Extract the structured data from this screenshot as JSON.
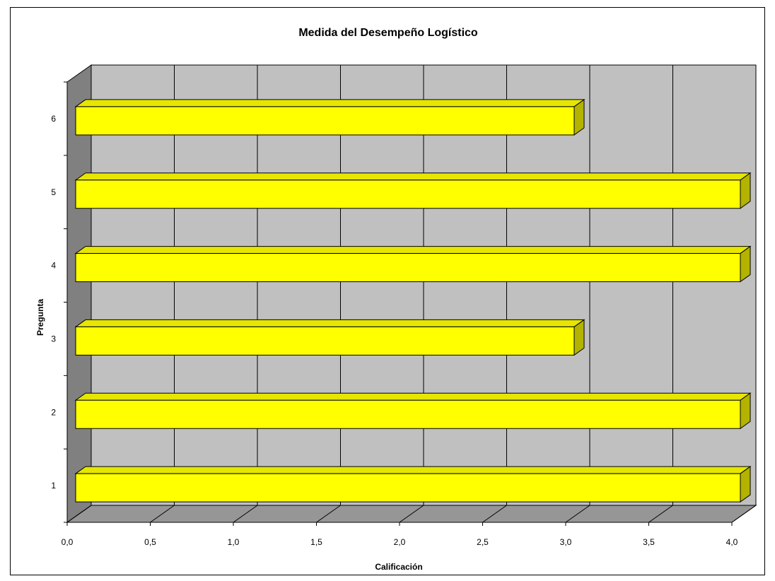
{
  "chart_data": {
    "type": "bar",
    "orientation": "horizontal",
    "style": "3d",
    "title": "Medida del Desempeño Logístico",
    "xlabel": "Calificación",
    "ylabel": "Pregunta",
    "categories": [
      "1",
      "2",
      "3",
      "4",
      "5",
      "6"
    ],
    "values": [
      4.0,
      4.0,
      3.0,
      4.0,
      4.0,
      3.0
    ],
    "xlim": [
      0,
      4
    ],
    "xticks": [
      "0,0",
      "0,5",
      "1,0",
      "1,5",
      "2,0",
      "2,5",
      "3,0",
      "3,5",
      "4,0"
    ],
    "grid": true,
    "legend": "none",
    "colors": {
      "bar_front": "#ffff00",
      "bar_top": "#e6e600",
      "bar_side": "#b3b300",
      "wall_back": "#c0c0c0",
      "wall_side": "#808080",
      "floor": "#969696"
    }
  }
}
